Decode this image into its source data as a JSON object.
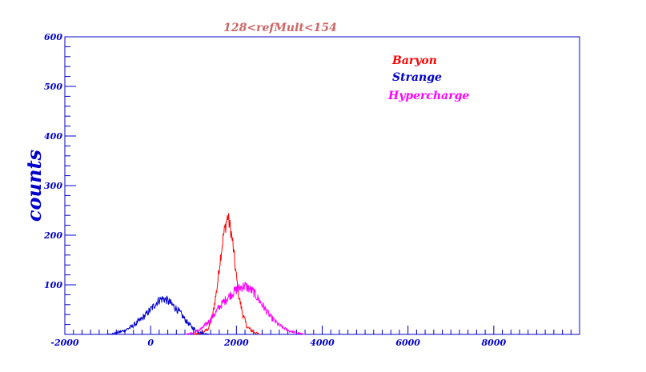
{
  "chart_data": {
    "type": "line",
    "title": "128<refMult<154",
    "xlabel": "",
    "ylabel": "counts",
    "xlim": [
      -2000,
      10000
    ],
    "ylim": [
      0,
      600
    ],
    "x_ticks": [
      -2000,
      0,
      2000,
      4000,
      6000,
      8000
    ],
    "y_ticks": [
      100,
      200,
      300,
      400,
      500,
      600
    ],
    "grid": false,
    "legend_placement": "top-right",
    "series": [
      {
        "name": "Baryon",
        "color": "#ff0000",
        "x": [
          1000,
          1200,
          1350,
          1450,
          1550,
          1620,
          1700,
          1760,
          1800,
          1830,
          1870,
          1920,
          1980,
          2050,
          2150,
          2250,
          2400,
          2550
        ],
        "y": [
          0,
          3,
          12,
          40,
          95,
          150,
          200,
          225,
          238,
          225,
          210,
          180,
          130,
          80,
          40,
          15,
          5,
          0
        ]
      },
      {
        "name": "Strange",
        "color": "#0000cc",
        "x": [
          -1000,
          -800,
          -600,
          -400,
          -200,
          0,
          100,
          200,
          300,
          400,
          500,
          600,
          700,
          800,
          900,
          1000,
          1100,
          1200,
          1300,
          1400
        ],
        "y": [
          0,
          3,
          8,
          18,
          32,
          50,
          60,
          70,
          72,
          68,
          60,
          52,
          42,
          30,
          20,
          12,
          6,
          3,
          1,
          0
        ]
      },
      {
        "name": "Hypercharge",
        "color": "#ff00ff",
        "x": [
          800,
          1000,
          1200,
          1400,
          1600,
          1800,
          2000,
          2100,
          2200,
          2300,
          2400,
          2600,
          2800,
          3000,
          3200,
          3400,
          3600
        ],
        "y": [
          0,
          3,
          12,
          30,
          55,
          75,
          90,
          95,
          98,
          92,
          85,
          60,
          35,
          18,
          8,
          3,
          0
        ]
      }
    ]
  }
}
